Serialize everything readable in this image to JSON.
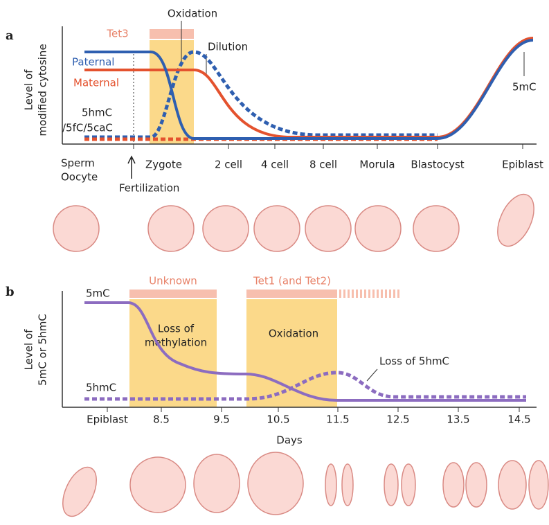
{
  "panel_a": {
    "label": "a",
    "tet_bar": "Tet3",
    "oxidation": "Oxidation",
    "dilution": "Dilution",
    "paternal": "Paternal",
    "maternal": "Maternal",
    "y_label": [
      "Level of",
      "modified cytosine"
    ],
    "hmc_label": [
      "5hmC",
      "/5fC/5caC"
    ],
    "mc_label": "5mC",
    "fertilization": "Fertilization",
    "stages": [
      "Sperm",
      "Oocyte",
      "Zygote",
      "2 cell",
      "4 cell",
      "8 cell",
      "Morula",
      "Blastocyst",
      "Epiblast"
    ]
  },
  "panel_b": {
    "label": "b",
    "unknown": "Unknown",
    "tet_bar": "Tet1 (and Tet2)",
    "loss_methylation": [
      "Loss of",
      "methylation"
    ],
    "oxidation": "Oxidation",
    "loss_hmc": "Loss of 5hmC",
    "mc_label": "5mC",
    "hmc_label": "5hmC",
    "y_label": [
      "Level of",
      "5mC or 5hmC"
    ],
    "x_ticks": [
      "Epiblast",
      "8.5",
      "9.5",
      "10.5",
      "11.5",
      "12.5",
      "13.5",
      "14.5"
    ],
    "x_label": "Days"
  }
}
